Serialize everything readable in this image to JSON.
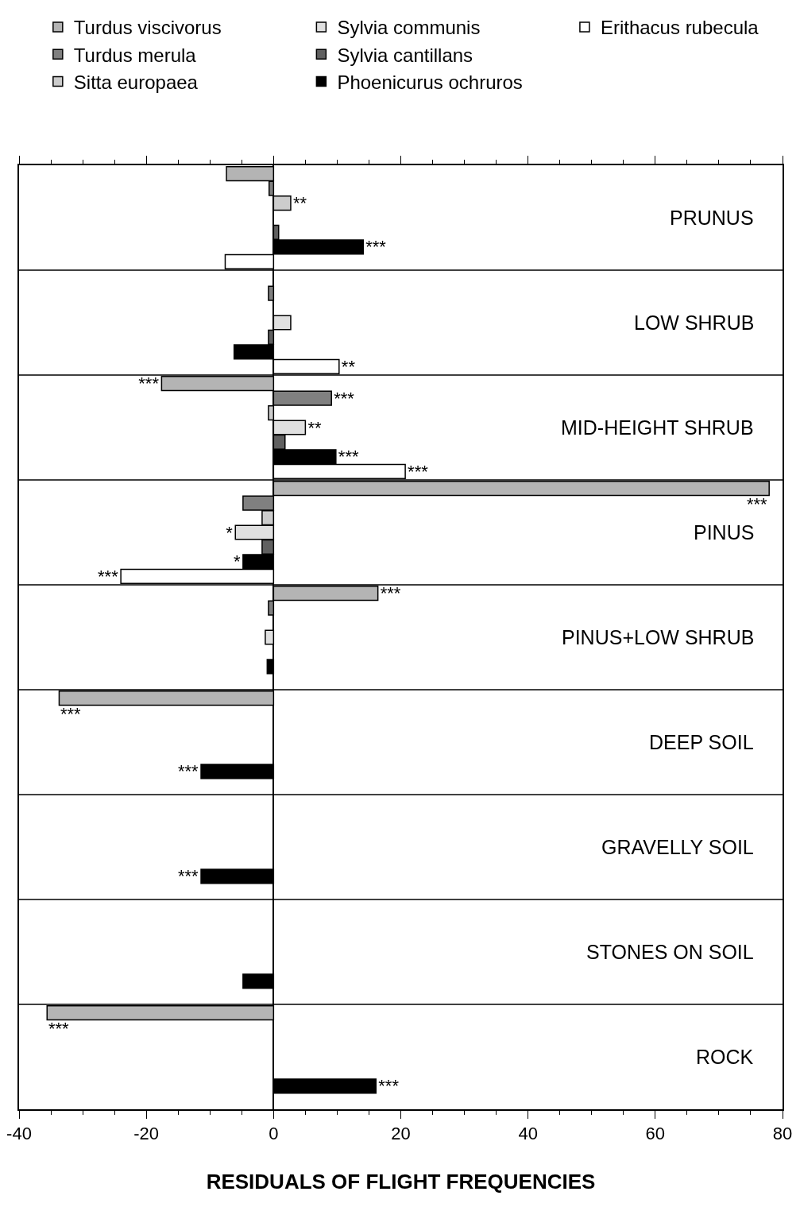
{
  "chart_data": {
    "type": "bar",
    "orientation": "horizontal",
    "xlabel": "RESIDUALS OF FLIGHT FREQUENCIES",
    "categories": [
      "PRUNUS",
      "LOW SHRUB",
      "MID-HEIGHT SHRUB",
      "PINUS",
      "PINUS+LOW SHRUB",
      "DEEP SOIL",
      "GRAVELLY SOIL",
      "STONES ON SOIL",
      "ROCK"
    ],
    "xlim": [
      -40,
      80
    ],
    "xticks": [
      -40,
      -20,
      0,
      20,
      40,
      60,
      80
    ],
    "legend": "top",
    "grid": false,
    "series": [
      {
        "name": "Turdus viscivorus",
        "color": "#b4b4b4",
        "values": [
          -7.4,
          null,
          -17.6,
          77.9,
          16.4,
          -33.7,
          null,
          null,
          -35.6
        ],
        "value_labels": [
          null,
          null,
          "***",
          "***",
          "***",
          "***",
          null,
          null,
          "***"
        ]
      },
      {
        "name": "Turdus merula",
        "color": "#808080",
        "values": [
          -0.7,
          -0.8,
          9.1,
          -4.8,
          -0.8,
          null,
          null,
          null,
          null
        ],
        "value_labels": [
          null,
          null,
          "***",
          null,
          null,
          null,
          null,
          null,
          null
        ]
      },
      {
        "name": "Sitta europaea",
        "color": "#cccccc",
        "values": [
          2.7,
          null,
          -0.8,
          -1.8,
          null,
          null,
          null,
          null,
          null
        ],
        "value_labels": [
          "**",
          null,
          null,
          null,
          null,
          null,
          null,
          null,
          null
        ]
      },
      {
        "name": "Sylvia communis",
        "color": "#e0e0e0",
        "values": [
          null,
          2.7,
          5.0,
          -6.0,
          -1.3,
          null,
          null,
          null,
          null
        ],
        "value_labels": [
          null,
          null,
          "**",
          "*",
          null,
          null,
          null,
          null,
          null
        ]
      },
      {
        "name": "Sylvia cantillans",
        "color": "#606060",
        "values": [
          0.8,
          -0.8,
          1.8,
          -1.8,
          null,
          null,
          null,
          null,
          null
        ],
        "value_labels": [
          null,
          null,
          null,
          null,
          null,
          null,
          null,
          null,
          null
        ]
      },
      {
        "name": "Phoenicurus ochruros",
        "color": "#000000",
        "values": [
          14.1,
          -6.2,
          9.8,
          -4.8,
          -1.0,
          -11.4,
          -11.4,
          -4.8,
          16.1
        ],
        "value_labels": [
          "***",
          null,
          "***",
          "*",
          null,
          "***",
          "***",
          null,
          "***"
        ]
      },
      {
        "name": "Erithacus rubecula",
        "color": "#ffffff",
        "values": [
          -7.6,
          10.3,
          20.7,
          -24.0,
          null,
          null,
          null,
          null,
          null
        ],
        "value_labels": [
          null,
          "**",
          "***",
          "***",
          null,
          null,
          null,
          null,
          null
        ]
      }
    ]
  }
}
